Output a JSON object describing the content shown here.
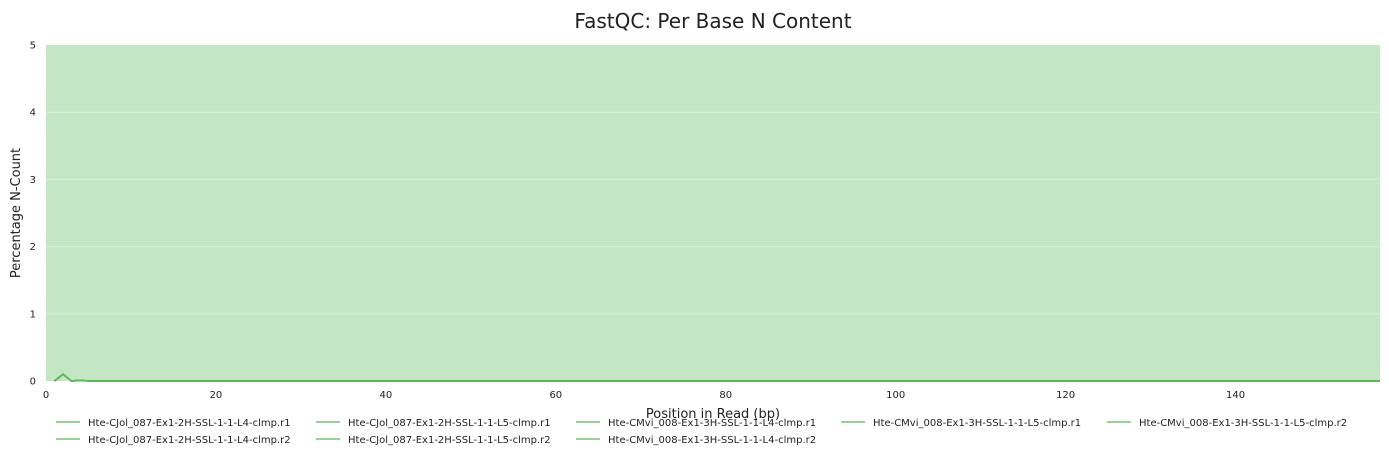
{
  "chart_data": {
    "type": "line",
    "title": "FastQC: Per Base N Content",
    "xlabel": "Position in Read (bp)",
    "ylabel": "Percentage N-Count",
    "xlim": [
      0,
      157
    ],
    "ylim": [
      0,
      5
    ],
    "x_ticks": [
      0,
      20,
      40,
      60,
      80,
      100,
      120,
      140
    ],
    "y_ticks": [
      0,
      1,
      2,
      3,
      4,
      5
    ],
    "grid": true,
    "legend_position": "bottom",
    "background_band": {
      "from": 0,
      "to": 5,
      "color": "#c4e6c4"
    },
    "series": [
      {
        "name": "Hte-CJol_087-Ex1-2H-SSL-1-1-L4-clmp.r1",
        "color": "#5cb85c",
        "x": [
          1,
          2,
          3,
          4,
          5,
          10,
          50,
          100,
          157
        ],
        "values": [
          0,
          0.1,
          0,
          0.01,
          0,
          0,
          0,
          0,
          0
        ]
      },
      {
        "name": "Hte-CJol_087-Ex1-2H-SSL-1-1-L5-clmp.r1",
        "color": "#5cb85c",
        "x": [
          1,
          2,
          3,
          4,
          5,
          10,
          50,
          100,
          157
        ],
        "values": [
          0,
          0.1,
          0,
          0.01,
          0,
          0,
          0,
          0,
          0
        ]
      },
      {
        "name": "Hte-CMvi_008-Ex1-3H-SSL-1-1-L4-clmp.r1",
        "color": "#5cb85c",
        "x": [
          1,
          2,
          3,
          4,
          5,
          10,
          50,
          100,
          157
        ],
        "values": [
          0,
          0.1,
          0,
          0.01,
          0,
          0,
          0,
          0,
          0
        ]
      },
      {
        "name": "Hte-CMvi_008-Ex1-3H-SSL-1-1-L5-clmp.r1",
        "color": "#5cb85c",
        "x": [
          1,
          2,
          3,
          4,
          5,
          10,
          50,
          100,
          157
        ],
        "values": [
          0,
          0.1,
          0,
          0.01,
          0,
          0,
          0,
          0,
          0
        ]
      },
      {
        "name": "Hte-CMvi_008-Ex1-3H-SSL-1-1-L5-clmp.r2",
        "color": "#5cb85c",
        "x": [
          1,
          2,
          3,
          4,
          5,
          10,
          50,
          100,
          157
        ],
        "values": [
          0,
          0.1,
          0,
          0.01,
          0,
          0,
          0,
          0,
          0
        ]
      },
      {
        "name": "Hte-CJol_087-Ex1-2H-SSL-1-1-L4-clmp.r2",
        "color": "#5cb85c",
        "x": [
          1,
          2,
          3,
          4,
          5,
          10,
          50,
          100,
          157
        ],
        "values": [
          0,
          0.1,
          0,
          0.01,
          0,
          0,
          0,
          0,
          0
        ]
      },
      {
        "name": "Hte-CJol_087-Ex1-2H-SSL-1-1-L5-clmp.r2",
        "color": "#5cb85c",
        "x": [
          1,
          2,
          3,
          4,
          5,
          10,
          50,
          100,
          157
        ],
        "values": [
          0,
          0.1,
          0,
          0.01,
          0,
          0,
          0,
          0,
          0
        ]
      },
      {
        "name": "Hte-CMvi_008-Ex1-3H-SSL-1-1-L4-clmp.r2",
        "color": "#5cb85c",
        "x": [
          1,
          2,
          3,
          4,
          5,
          10,
          50,
          100,
          157
        ],
        "values": [
          0,
          0.1,
          0,
          0.01,
          0,
          0,
          0,
          0,
          0
        ]
      }
    ]
  }
}
